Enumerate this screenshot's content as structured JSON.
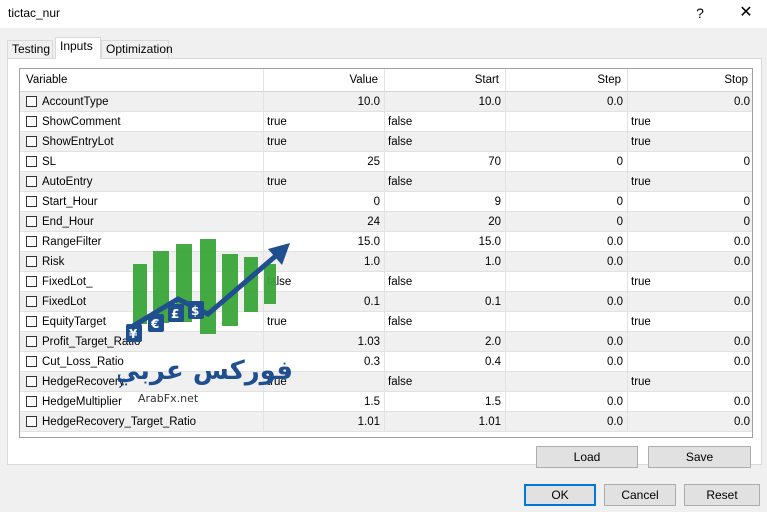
{
  "window": {
    "title": "tictac_nur",
    "help_glyph": "?",
    "close_glyph": "✕"
  },
  "tabs": [
    {
      "label": "Testing",
      "active": false
    },
    {
      "label": "Inputs",
      "active": true
    },
    {
      "label": "Optimization",
      "active": false
    }
  ],
  "grid": {
    "columns": [
      "Variable",
      "Value",
      "Start",
      "Step",
      "Stop"
    ],
    "rows": [
      {
        "name": "AccountType",
        "value": "10.0",
        "start": "10.0",
        "step": "0.0",
        "stop": "0.0",
        "checked": false
      },
      {
        "name": "ShowComment",
        "value": "true",
        "start": "false",
        "step": "",
        "stop": "true",
        "checked": false
      },
      {
        "name": "ShowEntryLot",
        "value": "true",
        "start": "false",
        "step": "",
        "stop": "true",
        "checked": false
      },
      {
        "name": "SL",
        "value": "25",
        "start": "70",
        "step": "0",
        "stop": "0",
        "checked": false
      },
      {
        "name": "AutoEntry",
        "value": "true",
        "start": "false",
        "step": "",
        "stop": "true",
        "checked": false
      },
      {
        "name": "Start_Hour",
        "value": "0",
        "start": "9",
        "step": "0",
        "stop": "0",
        "checked": false
      },
      {
        "name": "End_Hour",
        "value": "24",
        "start": "20",
        "step": "0",
        "stop": "0",
        "checked": false
      },
      {
        "name": "RangeFilter",
        "value": "15.0",
        "start": "15.0",
        "step": "0.0",
        "stop": "0.0",
        "checked": false
      },
      {
        "name": "Risk",
        "value": "1.0",
        "start": "1.0",
        "step": "0.0",
        "stop": "0.0",
        "checked": false
      },
      {
        "name": "FixedLot_",
        "value": "false",
        "start": "false",
        "step": "",
        "stop": "true",
        "checked": false
      },
      {
        "name": "FixedLot",
        "value": "0.1",
        "start": "0.1",
        "step": "0.0",
        "stop": "0.0",
        "checked": false
      },
      {
        "name": "EquityTarget",
        "value": "true",
        "start": "false",
        "step": "",
        "stop": "true",
        "checked": false
      },
      {
        "name": "Profit_Target_Ratio",
        "value": "1.03",
        "start": "2.0",
        "step": "0.0",
        "stop": "0.0",
        "checked": false
      },
      {
        "name": "Cut_Loss_Ratio",
        "value": "0.3",
        "start": "0.4",
        "step": "0.0",
        "stop": "0.0",
        "checked": false
      },
      {
        "name": "HedgeRecovery",
        "value": "true",
        "start": "false",
        "step": "",
        "stop": "true",
        "checked": false
      },
      {
        "name": "HedgeMultiplier",
        "value": "1.5",
        "start": "1.5",
        "step": "0.0",
        "stop": "0.0",
        "checked": false
      },
      {
        "name": "HedgeRecovery_Target_Ratio",
        "value": "1.01",
        "start": "1.01",
        "step": "0.0",
        "stop": "0.0",
        "checked": false
      }
    ]
  },
  "watermark": {
    "arabic_text": "فوركس عربي",
    "site": "ArabFx.net"
  },
  "buttons": {
    "load": "Load",
    "save": "Save",
    "ok": "OK",
    "cancel": "Cancel",
    "reset": "Reset"
  },
  "colors": {
    "accent": "#0078d7",
    "logo_green": "#3aa63a",
    "logo_blue": "#1f4f8f"
  }
}
